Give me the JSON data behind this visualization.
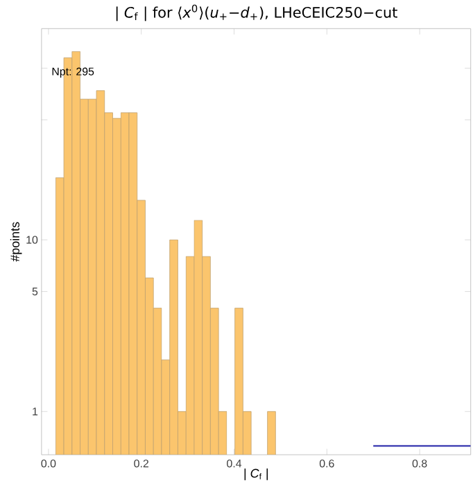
{
  "chart_data": {
    "type": "histogram",
    "title": "| *C*$_{f}$ | for ⟨*x*$^{0}$⟩(*u*$_{+}$−*d*$_{+}$), LHeCEIC250−cut",
    "xlabel": "| *C*$_{f}$ |",
    "ylabel": "#points",
    "log": "y",
    "color": "#fbc56d",
    "bins": [
      0.0156,
      0.0331,
      0.0507,
      0.0682,
      0.0858,
      0.1033,
      0.1209,
      0.1384,
      0.156,
      0.1735,
      0.1911,
      0.2086,
      0.2262,
      0.2437,
      0.2613,
      0.2788,
      0.2964,
      0.3139,
      0.3315,
      0.349,
      0.3666,
      0.3841,
      0.4017,
      0.4192,
      0.4368,
      0.4543,
      0.4719,
      0.4894
    ],
    "values": [
      23,
      115,
      125,
      66,
      66,
      74,
      55,
      51,
      55,
      55,
      17,
      6,
      4,
      2,
      10,
      1,
      8,
      13,
      8,
      4,
      1,
      null,
      4,
      1,
      null,
      null,
      1
    ],
    "series": [
      {
        "type": "line",
        "color": "#3a3ab0",
        "x": [
          0.7,
          0.91
        ],
        "values": [
          0.63,
          0.63
        ]
      }
    ],
    "xlim": [
      -0.015,
      0.91
    ],
    "ylim": [
      0.56,
      170
    ],
    "xticks": [
      {
        "value": 0,
        "label": "0.0"
      },
      {
        "value": 0.2,
        "label": "0.2"
      },
      {
        "value": 0.4,
        "label": "0.4"
      },
      {
        "value": 0.6,
        "label": "0.6"
      },
      {
        "value": 0.8,
        "label": "0.8"
      }
    ],
    "yticks": [
      1,
      5,
      10,
      {
        "value": 50,
        "label": null
      },
      {
        "value": 100,
        "label": null
      }
    ],
    "annotations": [
      "Npt: 295"
    ],
    "grid": false
  }
}
